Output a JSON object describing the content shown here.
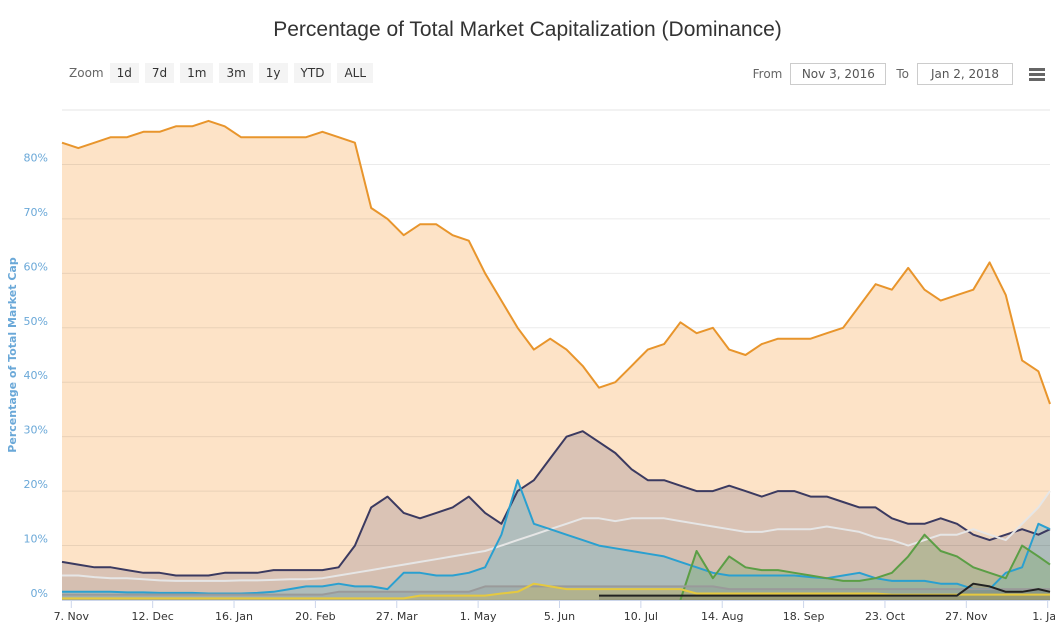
{
  "chart_data": {
    "type": "area",
    "title": "Percentage of Total Market Capitalization (Dominance)",
    "ylabel": "Percentage of Total Market Cap",
    "xlabel": "",
    "ylim": [
      0,
      90
    ],
    "xlim": [
      "2016-11-03",
      "2018-01-02"
    ],
    "grid": true,
    "yticks": [
      0,
      10,
      20,
      30,
      40,
      50,
      60,
      70,
      80
    ],
    "ytick_labels": [
      "0%",
      "10%",
      "20%",
      "30%",
      "40%",
      "50%",
      "60%",
      "70%",
      "80%"
    ],
    "xticks": [
      "2016-11-07",
      "2016-12-12",
      "2017-01-16",
      "2017-02-20",
      "2017-03-27",
      "2017-05-01",
      "2017-06-05",
      "2017-07-10",
      "2017-08-14",
      "2017-09-18",
      "2017-10-23",
      "2017-11-27",
      "2018-01-01"
    ],
    "xtick_labels": [
      "7. Nov",
      "12. Dec",
      "16. Jan",
      "20. Feb",
      "27. Mar",
      "1. May",
      "5. Jun",
      "10. Jul",
      "14. Aug",
      "18. Sep",
      "23. Oct",
      "27. Nov",
      "1. Jan"
    ],
    "x": [
      "2016-11-03",
      "2016-11-10",
      "2016-11-17",
      "2016-11-24",
      "2016-12-01",
      "2016-12-08",
      "2016-12-15",
      "2016-12-22",
      "2016-12-29",
      "2017-01-05",
      "2017-01-12",
      "2017-01-19",
      "2017-01-26",
      "2017-02-02",
      "2017-02-09",
      "2017-02-16",
      "2017-02-23",
      "2017-03-02",
      "2017-03-09",
      "2017-03-16",
      "2017-03-23",
      "2017-03-30",
      "2017-04-06",
      "2017-04-13",
      "2017-04-20",
      "2017-04-27",
      "2017-05-04",
      "2017-05-11",
      "2017-05-18",
      "2017-05-25",
      "2017-06-01",
      "2017-06-08",
      "2017-06-15",
      "2017-06-22",
      "2017-06-29",
      "2017-07-06",
      "2017-07-13",
      "2017-07-20",
      "2017-07-27",
      "2017-08-03",
      "2017-08-10",
      "2017-08-17",
      "2017-08-24",
      "2017-08-31",
      "2017-09-07",
      "2017-09-14",
      "2017-09-21",
      "2017-09-28",
      "2017-10-05",
      "2017-10-12",
      "2017-10-19",
      "2017-10-26",
      "2017-11-02",
      "2017-11-09",
      "2017-11-16",
      "2017-11-23",
      "2017-11-30",
      "2017-12-07",
      "2017-12-14",
      "2017-12-21",
      "2017-12-28",
      "2018-01-02"
    ],
    "series": [
      {
        "line": "#e8952c",
        "fill": "#fde3c7",
        "fill_opacity": 1,
        "values": [
          84,
          83,
          84,
          85,
          85,
          86,
          86,
          87,
          87,
          88,
          87,
          85,
          85,
          85,
          85,
          85,
          86,
          85,
          84,
          72,
          70,
          67,
          69,
          69,
          67,
          66,
          60,
          55,
          50,
          46,
          48,
          46,
          43,
          39,
          40,
          43,
          46,
          47,
          51,
          49,
          50,
          46,
          45,
          47,
          48,
          48,
          48,
          49,
          50,
          54,
          58,
          57,
          61,
          57,
          55,
          56,
          57,
          62,
          56,
          44,
          42,
          36
        ]
      },
      {
        "line": "#3b3a60",
        "fill": "#8a7a8a",
        "fill_opacity": 0.3,
        "values": [
          7,
          6.5,
          6,
          6,
          5.5,
          5,
          5,
          4.5,
          4.5,
          4.5,
          5,
          5,
          5,
          5.5,
          5.5,
          5.5,
          5.5,
          6,
          10,
          17,
          19,
          16,
          15,
          16,
          17,
          19,
          16,
          14,
          20,
          22,
          26,
          30,
          31,
          29,
          27,
          24,
          22,
          22,
          21,
          20,
          20,
          21,
          20,
          19,
          20,
          20,
          19,
          19,
          18,
          17,
          17,
          15,
          14,
          14,
          15,
          14,
          12,
          11,
          12,
          13,
          12,
          13
        ]
      },
      {
        "line": "#e6e6e6",
        "fill": "#c9b3a8",
        "fill_opacity": 0.25,
        "values": [
          4.5,
          4.5,
          4.2,
          4,
          4,
          3.8,
          3.6,
          3.5,
          3.5,
          3.5,
          3.5,
          3.6,
          3.6,
          3.7,
          3.8,
          3.8,
          4,
          4.5,
          5,
          5.5,
          6,
          6.5,
          7,
          7.5,
          8,
          8.5,
          9,
          10,
          11,
          12,
          13,
          14,
          15,
          15,
          14.5,
          15,
          15,
          15,
          14.5,
          14,
          13.5,
          13,
          12.5,
          12.5,
          13,
          13,
          13,
          13.5,
          13,
          12.5,
          11.5,
          11,
          10,
          11,
          12,
          12,
          13,
          12,
          11,
          14,
          17,
          20
        ]
      },
      {
        "line": "#2aa0d0",
        "fill": "#7fb9c8",
        "fill_opacity": 0.45,
        "values": [
          1.5,
          1.5,
          1.5,
          1.5,
          1.4,
          1.4,
          1.3,
          1.3,
          1.3,
          1.2,
          1.2,
          1.2,
          1.3,
          1.5,
          2,
          2.5,
          2.5,
          3,
          2.5,
          2.5,
          2,
          5,
          5,
          4.5,
          4.5,
          5,
          6,
          12,
          22,
          14,
          13,
          12,
          11,
          10,
          9.5,
          9,
          8.5,
          8,
          7,
          6,
          5,
          4.5,
          4.5,
          4.5,
          4.5,
          4.5,
          4.2,
          4,
          4.5,
          5,
          4,
          3.5,
          3.5,
          3.5,
          3,
          3,
          2,
          2,
          5,
          6,
          14,
          13
        ]
      },
      {
        "line": "#5b9e45",
        "fill": "#7ea86a",
        "fill_opacity": 0.35,
        "values": [
          null,
          null,
          null,
          null,
          null,
          null,
          null,
          null,
          null,
          null,
          null,
          null,
          null,
          null,
          null,
          null,
          null,
          null,
          null,
          null,
          null,
          null,
          null,
          null,
          null,
          null,
          null,
          null,
          null,
          null,
          null,
          null,
          null,
          null,
          null,
          null,
          null,
          null,
          0,
          9,
          4,
          8,
          6,
          5.5,
          5.5,
          5,
          4.5,
          4,
          3.5,
          3.5,
          4,
          5,
          8,
          12,
          9,
          8,
          6,
          5,
          4,
          10,
          8,
          6.5
        ]
      },
      {
        "line": "#9a9a9a",
        "fill": "#8e9a9a",
        "fill_opacity": 0.4,
        "values": [
          1,
          1,
          1,
          1,
          1,
          1,
          1,
          1,
          1,
          1,
          1,
          1,
          1,
          1,
          1,
          1,
          1,
          1.5,
          1.5,
          1.5,
          1.5,
          1.5,
          1.5,
          1.5,
          1.5,
          1.5,
          2.5,
          2.5,
          2.5,
          2.5,
          2.5,
          2.5,
          2.5,
          2.5,
          2.5,
          2.5,
          2.5,
          2.5,
          2.5,
          2.5,
          2.5,
          2,
          2,
          2,
          2,
          2,
          2,
          2,
          2,
          2,
          2,
          2,
          2,
          2,
          2,
          2,
          2,
          2,
          2,
          2,
          2,
          2
        ]
      },
      {
        "line": "#e5c940",
        "fill": "#d8b848",
        "fill_opacity": 0.3,
        "values": [
          0.3,
          0.3,
          0.3,
          0.3,
          0.3,
          0.3,
          0.3,
          0.3,
          0.3,
          0.3,
          0.3,
          0.3,
          0.3,
          0.3,
          0.3,
          0.3,
          0.3,
          0.3,
          0.3,
          0.3,
          0.3,
          0.3,
          0.8,
          0.8,
          0.8,
          0.8,
          0.8,
          1.2,
          1.5,
          3,
          2.5,
          2,
          2,
          2,
          2,
          2,
          2,
          2,
          2,
          1.2,
          1.2,
          1.2,
          1.2,
          1.2,
          1.2,
          1.2,
          1.2,
          1.2,
          1.2,
          1.2,
          1.2,
          1,
          1,
          1,
          1,
          1,
          1,
          1,
          1,
          1,
          1,
          1
        ]
      },
      {
        "line": "#222222",
        "fill": "#444444",
        "fill_opacity": 0.2,
        "values": [
          null,
          null,
          null,
          null,
          null,
          null,
          null,
          null,
          null,
          null,
          null,
          null,
          null,
          null,
          null,
          null,
          null,
          null,
          null,
          null,
          null,
          null,
          null,
          null,
          null,
          null,
          null,
          null,
          null,
          null,
          null,
          null,
          null,
          0.8,
          0.8,
          0.8,
          0.8,
          0.8,
          0.8,
          0.8,
          0.8,
          0.8,
          0.8,
          0.8,
          0.8,
          0.8,
          0.8,
          0.8,
          0.8,
          0.8,
          0.8,
          0.8,
          0.8,
          0.8,
          0.8,
          0.8,
          3,
          2.5,
          1.5,
          1.5,
          2,
          1.5
        ]
      }
    ]
  },
  "toolbar": {
    "zoom_label": "Zoom",
    "zoom_buttons": [
      "1d",
      "7d",
      "1m",
      "3m",
      "1y",
      "YTD",
      "ALL"
    ],
    "from_label": "From",
    "from_value": "Nov 3, 2016",
    "to_label": "To",
    "to_value": "Jan 2, 2018",
    "menu_icon": "hamburger-menu-icon"
  }
}
